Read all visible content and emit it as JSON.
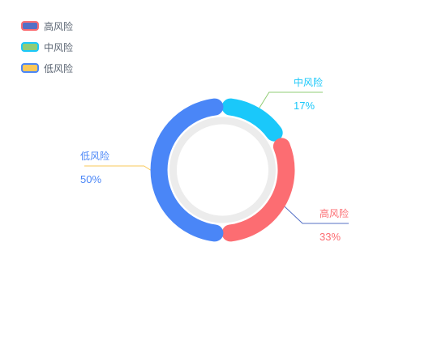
{
  "chart_data": {
    "type": "pie",
    "variant": "donut",
    "title": "",
    "legend_position": "top-left",
    "slices": [
      {
        "name": "高风险",
        "value": 33,
        "percent_label": "33%",
        "color": "#fc6d72",
        "legend_fill": "#5470c6",
        "legend_border": "#fc6d72"
      },
      {
        "name": "中风险",
        "value": 17,
        "percent_label": "17%",
        "color": "#1ac8fa",
        "legend_fill": "#91cc75",
        "legend_border": "#1ac8fa"
      },
      {
        "name": "低风险",
        "value": 50,
        "percent_label": "50%",
        "color": "#4a86f7",
        "legend_fill": "#fac858",
        "legend_border": "#4a86f7"
      }
    ]
  }
}
